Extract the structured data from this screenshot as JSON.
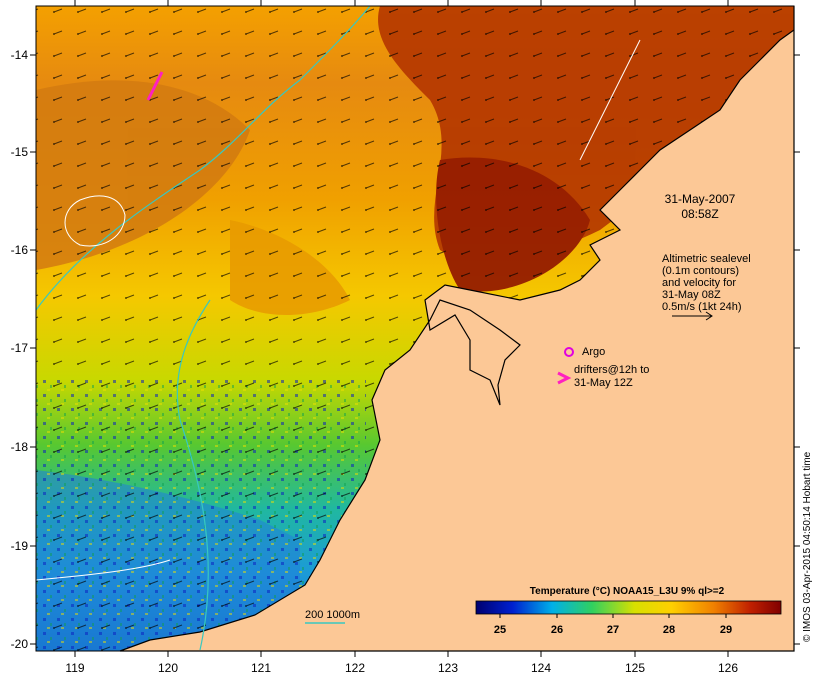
{
  "map": {
    "datetime_line1": "31-May-2007",
    "datetime_line2": "08:58Z",
    "altimetry_note": [
      "Altimetric sealevel",
      "(0.1m contours)",
      "and velocity for",
      "31-May 08Z",
      "0.5m/s (1kt 24h)"
    ],
    "argo_label": "Argo",
    "drifters_label": [
      "drifters@12h to",
      "31-May 12Z"
    ],
    "depth_label": "200  1000m",
    "colorbar_title": "Temperature (°C) NOAA15_L3U 9% ql>=2",
    "colorbar_ticks": [
      "25",
      "26",
      "27",
      "28",
      "29"
    ],
    "credit": "© IMOS 03-Apr-2015 04:50:14 Hobart time",
    "lon_ticks": [
      "119",
      "120",
      "121",
      "122",
      "123",
      "124",
      "125",
      "126"
    ],
    "lat_ticks": [
      "-14",
      "-15",
      "-16",
      "-17",
      "-18",
      "-19",
      "-20"
    ],
    "colors": {
      "land": "#fcc896",
      "warmest": "#8a0a00",
      "warm": "#e67a00",
      "mid": "#ffd000",
      "cool": "#39c830",
      "coolest": "#0a20c0",
      "argo": "#e000e0",
      "depth_contour": "#38c8c0"
    }
  }
}
